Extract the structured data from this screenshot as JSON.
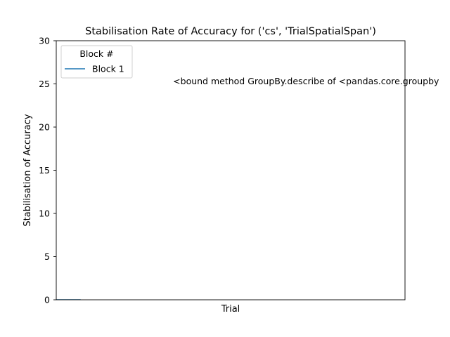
{
  "chart_data": {
    "type": "line",
    "title": "Stabilisation Rate of Accuracy for ('cs', 'TrialSpatialSpan')",
    "xlabel": "Trial",
    "ylabel": "Stabilisation of Accuracy",
    "ylim": [
      0,
      30
    ],
    "y_ticks": [
      0,
      5,
      10,
      15,
      20,
      25,
      30
    ],
    "xlim": [
      0,
      1
    ],
    "x_ticks": [],
    "grid": false,
    "legend": {
      "title": "Block #",
      "placement": "top-left"
    },
    "series": [
      {
        "name": "Block 1",
        "color": "#1f77b4",
        "x": [
          0,
          0.07
        ],
        "y": [
          0,
          0
        ]
      }
    ],
    "annotation": {
      "text": "<bound method GroupBy.describe of <pandas.core.groupby",
      "x": 0.335,
      "y": 25
    }
  }
}
